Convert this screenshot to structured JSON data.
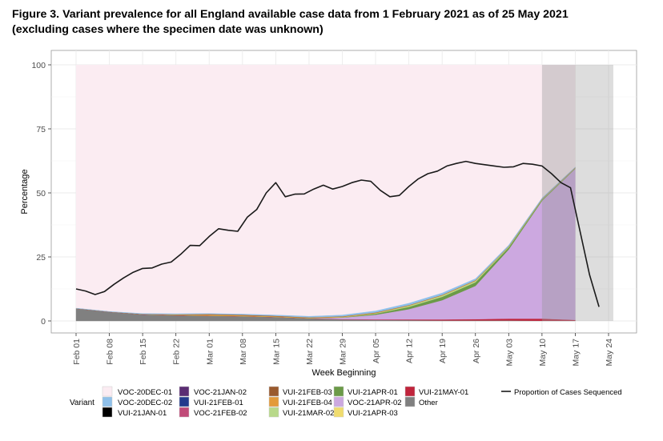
{
  "figure": {
    "title_line1": "Figure 3. Variant prevalence for all England available case data from 1 February 2021 as of 25 May 2021",
    "title_line2": "(excluding cases where the specimen date was unknown)"
  },
  "chart_data": {
    "type": "area",
    "title": "Figure 3. Variant prevalence for all England available case data from 1 February 2021 as of 25 May 2021 (excluding cases where the specimen date was unknown)",
    "xlabel": "Week Beginning",
    "ylabel": "Percentage",
    "x_ticks": [
      "Feb 01",
      "Feb 08",
      "Feb 15",
      "Feb 22",
      "Mar 01",
      "Mar 08",
      "Mar 15",
      "Mar 22",
      "Mar 29",
      "Apr 05",
      "Apr 12",
      "Apr 19",
      "Apr 26",
      "May 03",
      "May 10",
      "May 17",
      "May 24"
    ],
    "y_ticks": [
      0,
      25,
      50,
      75,
      100
    ],
    "ylim": [
      0,
      100
    ],
    "xlim_days": [
      -3,
      115
    ],
    "grid": true,
    "legend_title": "Variant",
    "legend_position": "bottom",
    "legend": [
      {
        "name": "VOC-20DEC-01",
        "color": "#fbecf2"
      },
      {
        "name": "VOC-20DEC-02",
        "color": "#8fc0ea"
      },
      {
        "name": "VUI-21JAN-01",
        "color": "#000000"
      },
      {
        "name": "VOC-21JAN-02",
        "color": "#5b2d73"
      },
      {
        "name": "VUI-21FEB-01",
        "color": "#233a8c"
      },
      {
        "name": "VOC-21FEB-02",
        "color": "#c04a78"
      },
      {
        "name": "VUI-21FEB-03",
        "color": "#9a5a2e"
      },
      {
        "name": "VUI-21FEB-04",
        "color": "#e39a3a"
      },
      {
        "name": "VUI-21MAR-02",
        "color": "#b8d98a"
      },
      {
        "name": "VUI-21APR-01",
        "color": "#6b9a48"
      },
      {
        "name": "VOC-21APR-02",
        "color": "#cca8e0"
      },
      {
        "name": "VUI-21APR-03",
        "color": "#f0dc6e"
      },
      {
        "name": "VUI-21MAY-01",
        "color": "#c0243c"
      },
      {
        "name": "Other",
        "color": "#808080"
      }
    ],
    "line_legend": "Proportion of Cases Sequenced",
    "x_days": [
      0,
      7,
      14,
      21,
      28,
      35,
      42,
      49,
      56,
      63,
      70,
      77,
      84,
      91,
      98,
      105
    ],
    "series": [
      {
        "name": "Other",
        "color": "#808080",
        "values": [
          4.8,
          3.5,
          2.5,
          2.2,
          2.0,
          1.8,
          1.5,
          1.0,
          0.6,
          0.4,
          0.3,
          0.2,
          0.2,
          0.2,
          0.1,
          0.1
        ]
      },
      {
        "name": "VUI-21MAY-01",
        "color": "#c0243c",
        "values": [
          0.1,
          0.1,
          0.1,
          0.1,
          0.1,
          0.1,
          0.1,
          0.1,
          0.1,
          0.2,
          0.3,
          0.4,
          0.5,
          0.7,
          0.8,
          0.3
        ]
      },
      {
        "name": "VOC-21APR-02",
        "color": "#cca8e0",
        "values": [
          0,
          0,
          0,
          0,
          0,
          0,
          0,
          0,
          0.6,
          1.8,
          4.0,
          7.5,
          13.0,
          27.0,
          46.0,
          59.0
        ]
      },
      {
        "name": "VUI-21APR-01",
        "color": "#6b9a48",
        "values": [
          0,
          0,
          0,
          0,
          0,
          0,
          0,
          0,
          0.1,
          0.4,
          0.9,
          1.3,
          1.4,
          0.8,
          0.4,
          0.2
        ]
      },
      {
        "name": "VUI-21MAR-02",
        "color": "#b8d98a",
        "values": [
          0,
          0,
          0,
          0,
          0,
          0,
          0,
          0,
          0.1,
          0.2,
          0.4,
          0.5,
          0.5,
          0.3,
          0.2,
          0.1
        ]
      },
      {
        "name": "VUI-21FEB-04",
        "color": "#e39a3a",
        "values": [
          0,
          0,
          0,
          0.2,
          0.4,
          0.3,
          0.2,
          0.2,
          0.2,
          0.2,
          0.2,
          0.2,
          0.2,
          0.1,
          0.1,
          0.1
        ]
      },
      {
        "name": "VUI-21FEB-03",
        "color": "#9a5a2e",
        "values": [
          0,
          0,
          0.1,
          0.1,
          0.2,
          0.2,
          0.2,
          0.1,
          0.1,
          0.1,
          0.1,
          0.1,
          0.1,
          0.1,
          0.1,
          0.1
        ]
      },
      {
        "name": "VOC-20DEC-02",
        "color": "#8fc0ea",
        "values": [
          0.1,
          0.1,
          0.2,
          0.2,
          0.2,
          0.3,
          0.3,
          0.4,
          0.5,
          0.6,
          0.7,
          0.7,
          0.6,
          0.4,
          0.3,
          0.2
        ]
      }
    ],
    "background_series": {
      "name": "VOC-20DEC-01",
      "color": "#fbecf2",
      "note": "fills remainder to 100"
    },
    "proportion_sequenced": {
      "x": [
        0,
        2,
        4,
        6,
        8,
        10,
        12,
        14,
        16,
        18,
        20,
        22,
        24,
        26,
        28,
        30,
        32,
        34,
        36,
        38,
        40,
        42,
        44,
        46,
        48,
        50,
        52,
        54,
        56,
        58,
        60,
        62,
        64,
        66,
        68,
        70,
        72,
        74,
        76,
        78,
        80,
        82,
        84,
        86,
        88,
        90,
        92,
        94,
        96,
        98,
        100,
        102,
        104,
        106,
        108,
        110
      ],
      "y": [
        12.5,
        11.7,
        10.3,
        11.5,
        14.3,
        16.8,
        19.0,
        20.5,
        20.7,
        22.2,
        23.0,
        26.0,
        29.5,
        29.4,
        33.0,
        36.0,
        35.4,
        35.0,
        40.5,
        43.5,
        50.0,
        54.0,
        48.5,
        49.5,
        49.6,
        51.5,
        53.0,
        51.5,
        52.5,
        54.0,
        55.0,
        54.5,
        51.0,
        48.5,
        49.0,
        52.5,
        55.5,
        57.5,
        58.5,
        60.5,
        61.5,
        62.3,
        61.5,
        61.0,
        60.5,
        60.0,
        60.2,
        61.5,
        61.2,
        60.5,
        57.5,
        54.0,
        52.0,
        35.0,
        18.0,
        5.5
      ]
    },
    "shaded_periods_days": [
      [
        98,
        105
      ],
      [
        105,
        113
      ]
    ]
  }
}
